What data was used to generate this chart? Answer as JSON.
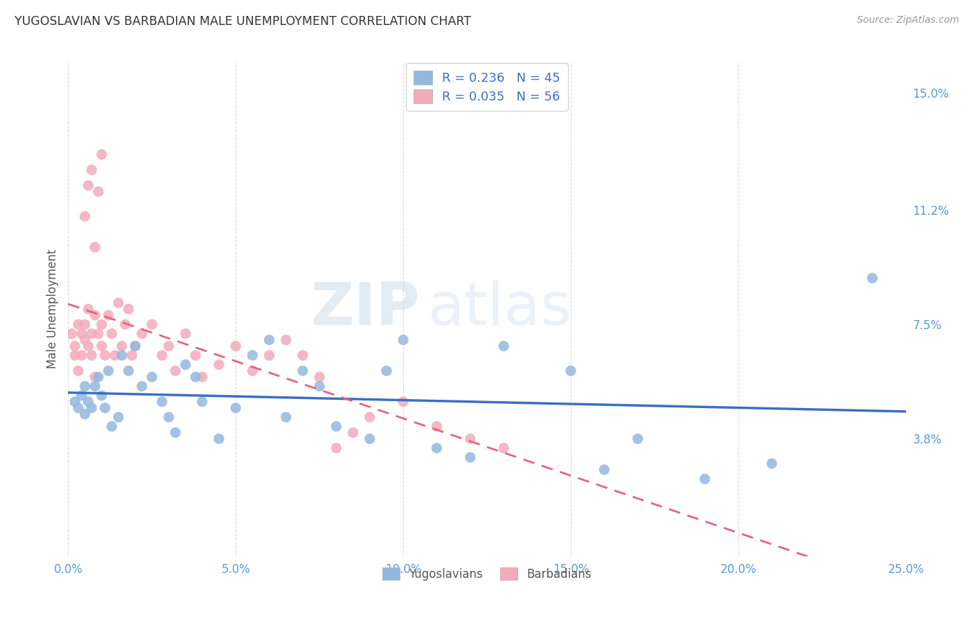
{
  "title": "YUGOSLAVIAN VS BARBADIAN MALE UNEMPLOYMENT CORRELATION CHART",
  "source": "Source: ZipAtlas.com",
  "ylabel": "Male Unemployment",
  "x_ticks": [
    "0.0%",
    "5.0%",
    "10.0%",
    "15.0%",
    "20.0%",
    "25.0%"
  ],
  "x_tick_vals": [
    0.0,
    0.05,
    0.1,
    0.15,
    0.2,
    0.25
  ],
  "y_ticks_right": [
    "15.0%",
    "11.2%",
    "7.5%",
    "3.8%"
  ],
  "y_tick_vals_right": [
    0.15,
    0.112,
    0.075,
    0.038
  ],
  "xlim": [
    0.0,
    0.25
  ],
  "ylim": [
    0.0,
    0.16
  ],
  "legend_blue_label": "R = 0.236   N = 45",
  "legend_pink_label": "R = 0.035   N = 56",
  "legend_yug_label": "Yugoslavians",
  "legend_barb_label": "Barbadians",
  "blue_color": "#93B8E0",
  "pink_color": "#F4AABB",
  "watermark_zip": "ZIP",
  "watermark_atlas": "atlas",
  "title_color": "#333333",
  "axis_tick_color": "#5B9BD5",
  "ylabel_color": "#555555",
  "yug_scatter_x": [
    0.002,
    0.003,
    0.004,
    0.005,
    0.005,
    0.006,
    0.007,
    0.008,
    0.009,
    0.01,
    0.011,
    0.012,
    0.013,
    0.015,
    0.016,
    0.018,
    0.02,
    0.022,
    0.025,
    0.028,
    0.03,
    0.032,
    0.035,
    0.038,
    0.04,
    0.045,
    0.05,
    0.055,
    0.06,
    0.065,
    0.07,
    0.075,
    0.08,
    0.09,
    0.095,
    0.1,
    0.11,
    0.12,
    0.13,
    0.15,
    0.16,
    0.17,
    0.19,
    0.21,
    0.24
  ],
  "yug_scatter_y": [
    0.05,
    0.048,
    0.052,
    0.055,
    0.046,
    0.05,
    0.048,
    0.055,
    0.058,
    0.052,
    0.048,
    0.06,
    0.042,
    0.045,
    0.065,
    0.06,
    0.068,
    0.055,
    0.058,
    0.05,
    0.045,
    0.04,
    0.062,
    0.058,
    0.05,
    0.038,
    0.048,
    0.065,
    0.07,
    0.045,
    0.06,
    0.055,
    0.042,
    0.038,
    0.06,
    0.07,
    0.035,
    0.032,
    0.068,
    0.06,
    0.028,
    0.038,
    0.025,
    0.03,
    0.09
  ],
  "barb_scatter_x": [
    0.001,
    0.002,
    0.002,
    0.003,
    0.003,
    0.004,
    0.004,
    0.005,
    0.005,
    0.006,
    0.006,
    0.007,
    0.007,
    0.008,
    0.008,
    0.009,
    0.01,
    0.01,
    0.011,
    0.012,
    0.013,
    0.014,
    0.015,
    0.016,
    0.017,
    0.018,
    0.019,
    0.02,
    0.022,
    0.025,
    0.028,
    0.03,
    0.032,
    0.035,
    0.038,
    0.04,
    0.045,
    0.05,
    0.055,
    0.06,
    0.065,
    0.07,
    0.075,
    0.08,
    0.085,
    0.09,
    0.1,
    0.11,
    0.12,
    0.13,
    0.005,
    0.006,
    0.007,
    0.008,
    0.009,
    0.01
  ],
  "barb_scatter_y": [
    0.072,
    0.065,
    0.068,
    0.075,
    0.06,
    0.072,
    0.065,
    0.07,
    0.075,
    0.068,
    0.08,
    0.065,
    0.072,
    0.078,
    0.058,
    0.072,
    0.075,
    0.068,
    0.065,
    0.078,
    0.072,
    0.065,
    0.082,
    0.068,
    0.075,
    0.08,
    0.065,
    0.068,
    0.072,
    0.075,
    0.065,
    0.068,
    0.06,
    0.072,
    0.065,
    0.058,
    0.062,
    0.068,
    0.06,
    0.065,
    0.07,
    0.065,
    0.058,
    0.035,
    0.04,
    0.045,
    0.05,
    0.042,
    0.038,
    0.035,
    0.11,
    0.12,
    0.125,
    0.1,
    0.118,
    0.13
  ]
}
